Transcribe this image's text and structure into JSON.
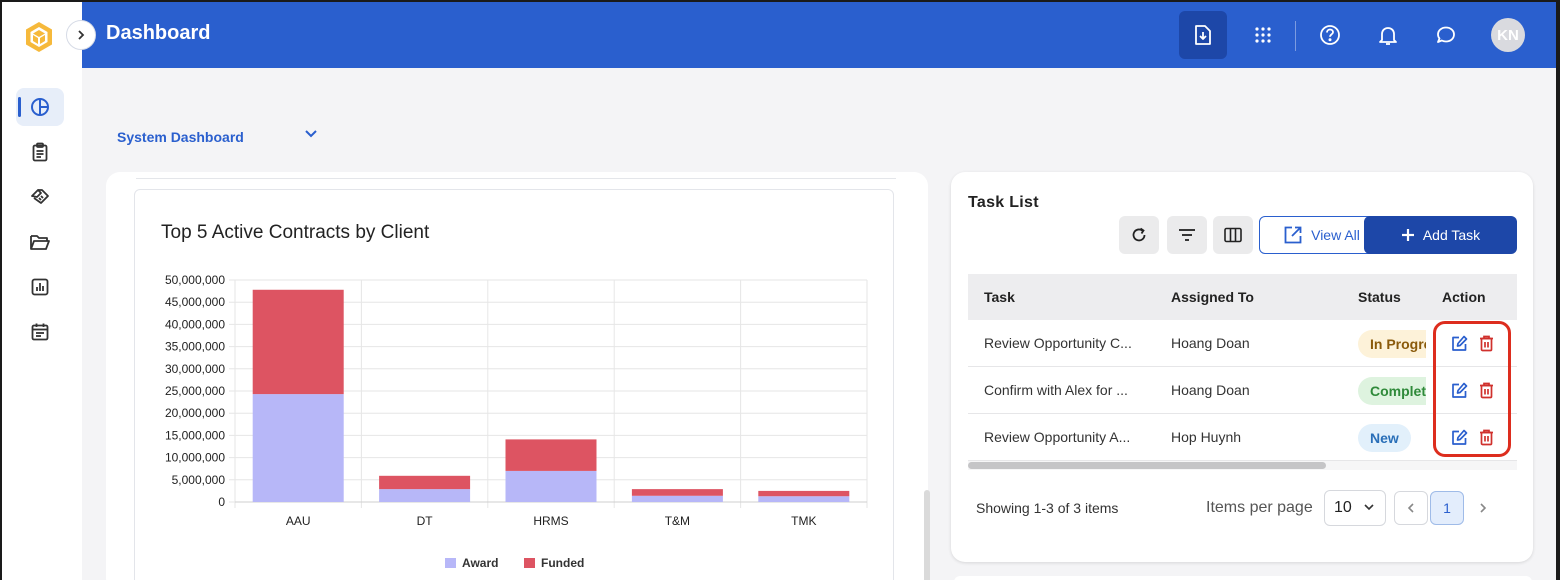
{
  "header": {
    "title": "Dashboard",
    "avatar_initials": "KN",
    "icons": [
      "download-file-icon",
      "apps-grid-icon",
      "help-icon",
      "bell-icon",
      "chat-icon"
    ]
  },
  "sidebar": {
    "items": [
      {
        "icon": "dashboard-pie-icon",
        "active": true
      },
      {
        "icon": "clipboard-icon",
        "active": false
      },
      {
        "icon": "handshake-icon",
        "active": false
      },
      {
        "icon": "folder-icon",
        "active": false
      },
      {
        "icon": "report-chart-icon",
        "active": false
      },
      {
        "icon": "calendar-icon",
        "active": false
      }
    ]
  },
  "dashboard_select": {
    "label": "System Dashboard"
  },
  "colors": {
    "primary": "#2a5fce",
    "award": "#b7b7f8",
    "funded": "#dd5462",
    "delete": "#d0312d"
  },
  "chart_data": {
    "type": "bar",
    "stacked": true,
    "title": "Top 5 Active Contracts by Client",
    "categories": [
      "AAU",
      "DT",
      "HRMS",
      "T&M",
      "TMK"
    ],
    "series": [
      {
        "name": "Award",
        "values": [
          24300000,
          2900000,
          7000000,
          1400000,
          1300000
        ]
      },
      {
        "name": "Funded",
        "values": [
          23500000,
          3000000,
          7100000,
          1500000,
          1200000
        ]
      }
    ],
    "ylim": [
      0,
      50000000
    ],
    "yticks": [
      "0",
      "5,000,000",
      "10,000,000",
      "15,000,000",
      "20,000,000",
      "25,000,000",
      "30,000,000",
      "35,000,000",
      "40,000,000",
      "45,000,000",
      "50,000,000"
    ],
    "grid": true,
    "legend": "bottom"
  },
  "task_list": {
    "title": "Task List",
    "view_all_label": "View All",
    "add_task_label": "Add Task",
    "columns": [
      "Task",
      "Assigned To",
      "Status",
      "Action"
    ],
    "rows": [
      {
        "task": "Review Opportunity C...",
        "assignee": "Hoang Doan",
        "status": "In Progress",
        "status_bg": "#fdf2d9",
        "status_fg": "#8a5a0b"
      },
      {
        "task": "Confirm with Alex for ...",
        "assignee": "Hoang Doan",
        "status": "Completed",
        "status_bg": "#def3df",
        "status_fg": "#2f8a3a"
      },
      {
        "task": "Review Opportunity A...",
        "assignee": "Hop Huynh",
        "status": "New",
        "status_bg": "#e2f0fb",
        "status_fg": "#2a6fb8"
      }
    ],
    "showing_text": "Showing 1-3 of 3 items",
    "items_per_page_label": "Items per page",
    "items_per_page_value": "10",
    "current_page": "1"
  }
}
